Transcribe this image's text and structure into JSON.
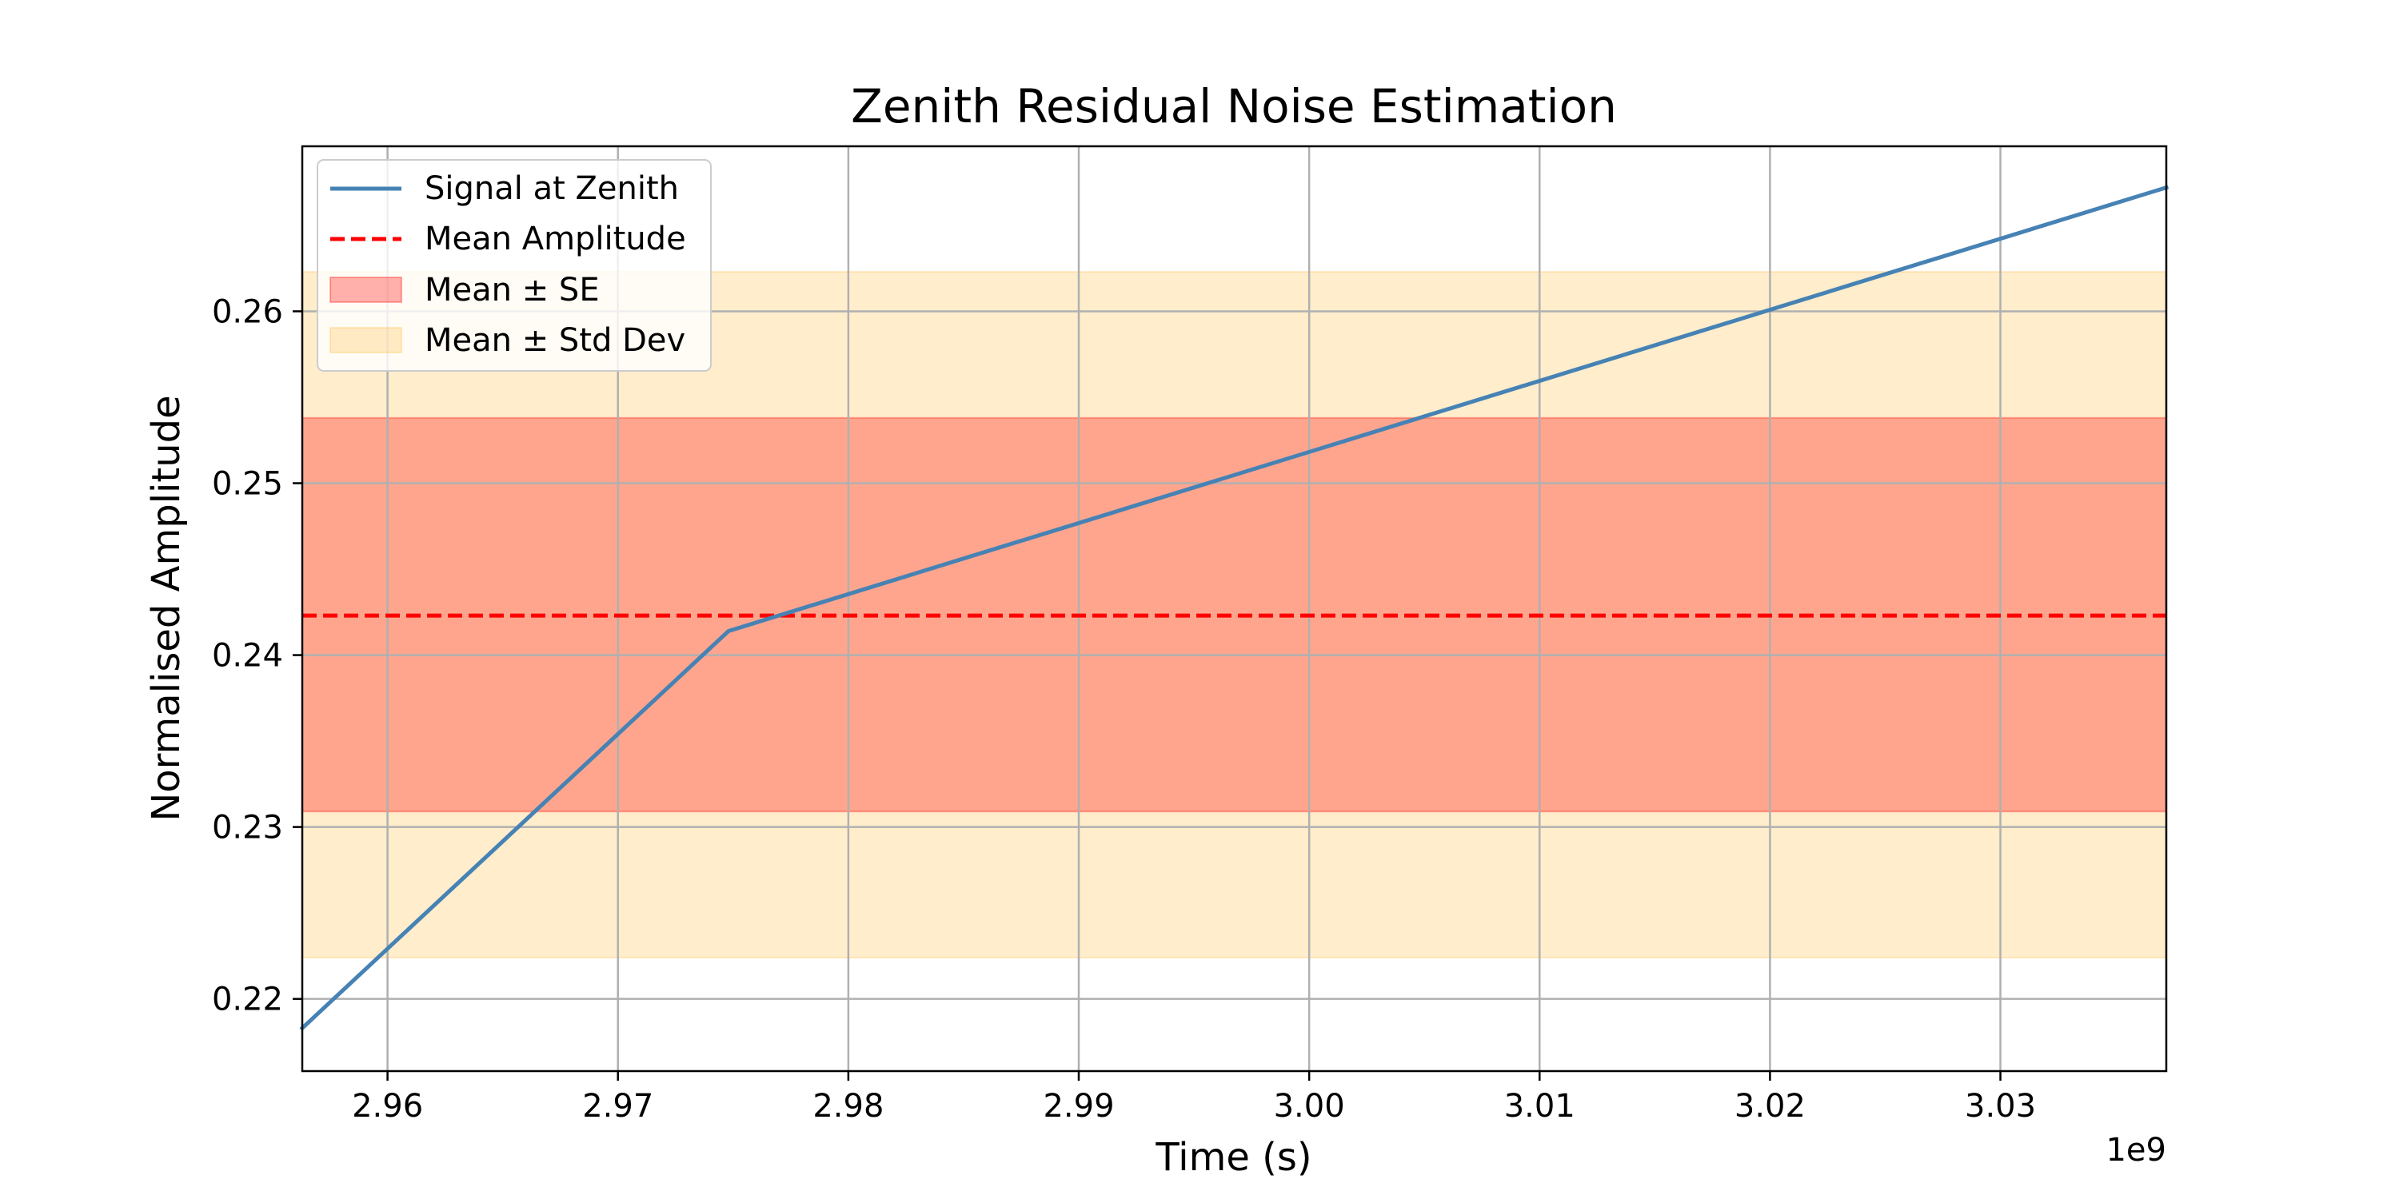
{
  "chart_data": {
    "type": "line",
    "title": "Zenith Residual Noise Estimation",
    "xlabel": "Time (s)",
    "ylabel": "Normalised Amplitude",
    "x_offset_label": "1e9",
    "xlim": [
      2.9563,
      3.0372
    ],
    "ylim": [
      0.2158,
      0.2696
    ],
    "xticks": [
      2.96,
      2.97,
      2.98,
      2.99,
      3.0,
      3.01,
      3.02,
      3.03
    ],
    "xtick_labels": [
      "2.96",
      "2.97",
      "2.98",
      "2.99",
      "3.00",
      "3.01",
      "3.02",
      "3.03"
    ],
    "yticks": [
      0.22,
      0.23,
      0.24,
      0.25,
      0.26
    ],
    "ytick_labels": [
      "0.22",
      "0.23",
      "0.24",
      "0.25",
      "0.26"
    ],
    "grid": true,
    "legend_position": "top-left",
    "series": [
      {
        "name": "Signal at Zenith",
        "kind": "line",
        "color": "#4682b4",
        "x": [
          2.9563,
          2.9748,
          3.0372
        ],
        "y": [
          0.2183,
          0.2414,
          0.2672
        ]
      },
      {
        "name": "Mean Amplitude",
        "kind": "hline",
        "color": "#ff0000",
        "y": 0.2423
      },
      {
        "name": "Mean ± SE",
        "kind": "band",
        "color": "#ff0000",
        "y_low": 0.2309,
        "y_high": 0.2538
      },
      {
        "name": "Mean ± Std Dev",
        "kind": "band",
        "color": "#ffa500",
        "y_low": 0.2224,
        "y_high": 0.2623
      }
    ]
  }
}
